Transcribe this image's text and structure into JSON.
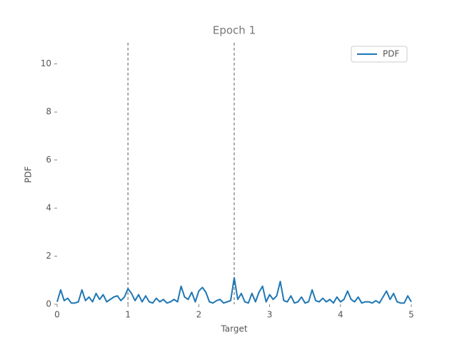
{
  "chart_data": {
    "type": "line",
    "title": "Epoch 1",
    "x_label": "Target",
    "y_label": "PDF",
    "xlim": [
      0,
      5
    ],
    "ylim": [
      0,
      11
    ],
    "xticks": [
      0,
      1,
      2,
      3,
      4,
      5
    ],
    "yticks": [
      0,
      2,
      4,
      6,
      8,
      10
    ],
    "grid": false,
    "legend": "upper right",
    "vlines": [
      1,
      2.5
    ],
    "x": [
      0,
      0.05,
      0.1,
      0.15,
      0.2,
      0.25,
      0.3,
      0.35,
      0.4,
      0.45,
      0.5,
      0.55,
      0.6,
      0.65,
      0.7,
      0.75,
      0.8,
      0.85,
      0.9,
      0.95,
      1,
      1.05,
      1.1,
      1.15,
      1.2,
      1.25,
      1.3,
      1.35,
      1.4,
      1.45,
      1.5,
      1.55,
      1.6,
      1.65,
      1.7,
      1.75,
      1.8,
      1.85,
      1.9,
      1.95,
      2,
      2.05,
      2.1,
      2.15,
      2.2,
      2.25,
      2.3,
      2.35,
      2.4,
      2.45,
      2.5,
      2.55,
      2.6,
      2.65,
      2.7,
      2.75,
      2.8,
      2.85,
      2.9,
      2.95,
      3,
      3.05,
      3.1,
      3.15,
      3.2,
      3.25,
      3.3,
      3.35,
      3.4,
      3.45,
      3.5,
      3.55,
      3.6,
      3.65,
      3.7,
      3.75,
      3.8,
      3.85,
      3.9,
      3.95,
      4,
      4.05,
      4.1,
      4.15,
      4.2,
      4.25,
      4.3,
      4.35,
      4.4,
      4.45,
      4.5,
      4.55,
      4.6,
      4.65,
      4.7,
      4.75,
      4.8,
      4.85,
      4.9,
      4.95,
      5
    ],
    "series": [
      {
        "name": "PDF",
        "color": "#1f77b4",
        "values": [
          0.1,
          0.6,
          0.15,
          0.25,
          0.05,
          0.05,
          0.1,
          0.6,
          0.15,
          0.3,
          0.1,
          0.45,
          0.2,
          0.4,
          0.1,
          0.2,
          0.3,
          0.35,
          0.15,
          0.3,
          0.65,
          0.45,
          0.15,
          0.4,
          0.1,
          0.35,
          0.1,
          0.05,
          0.25,
          0.1,
          0.2,
          0.05,
          0.1,
          0.2,
          0.1,
          0.75,
          0.3,
          0.2,
          0.5,
          0.1,
          0.55,
          0.7,
          0.5,
          0.1,
          0.05,
          0.15,
          0.2,
          0.05,
          0.1,
          0.15,
          1.1,
          0.2,
          0.45,
          0.1,
          0.05,
          0.45,
          0.1,
          0.5,
          0.75,
          0.1,
          0.4,
          0.2,
          0.35,
          0.95,
          0.15,
          0.1,
          0.35,
          0.05,
          0.1,
          0.3,
          0.05,
          0.1,
          0.6,
          0.15,
          0.1,
          0.25,
          0.1,
          0.2,
          0.05,
          0.3,
          0.1,
          0.2,
          0.55,
          0.2,
          0.1,
          0.3,
          0.05,
          0.1,
          0.1,
          0.05,
          0.15,
          0.05,
          0.3,
          0.55,
          0.2,
          0.45,
          0.1,
          0.05,
          0.05,
          0.35,
          0.1
        ]
      }
    ]
  }
}
